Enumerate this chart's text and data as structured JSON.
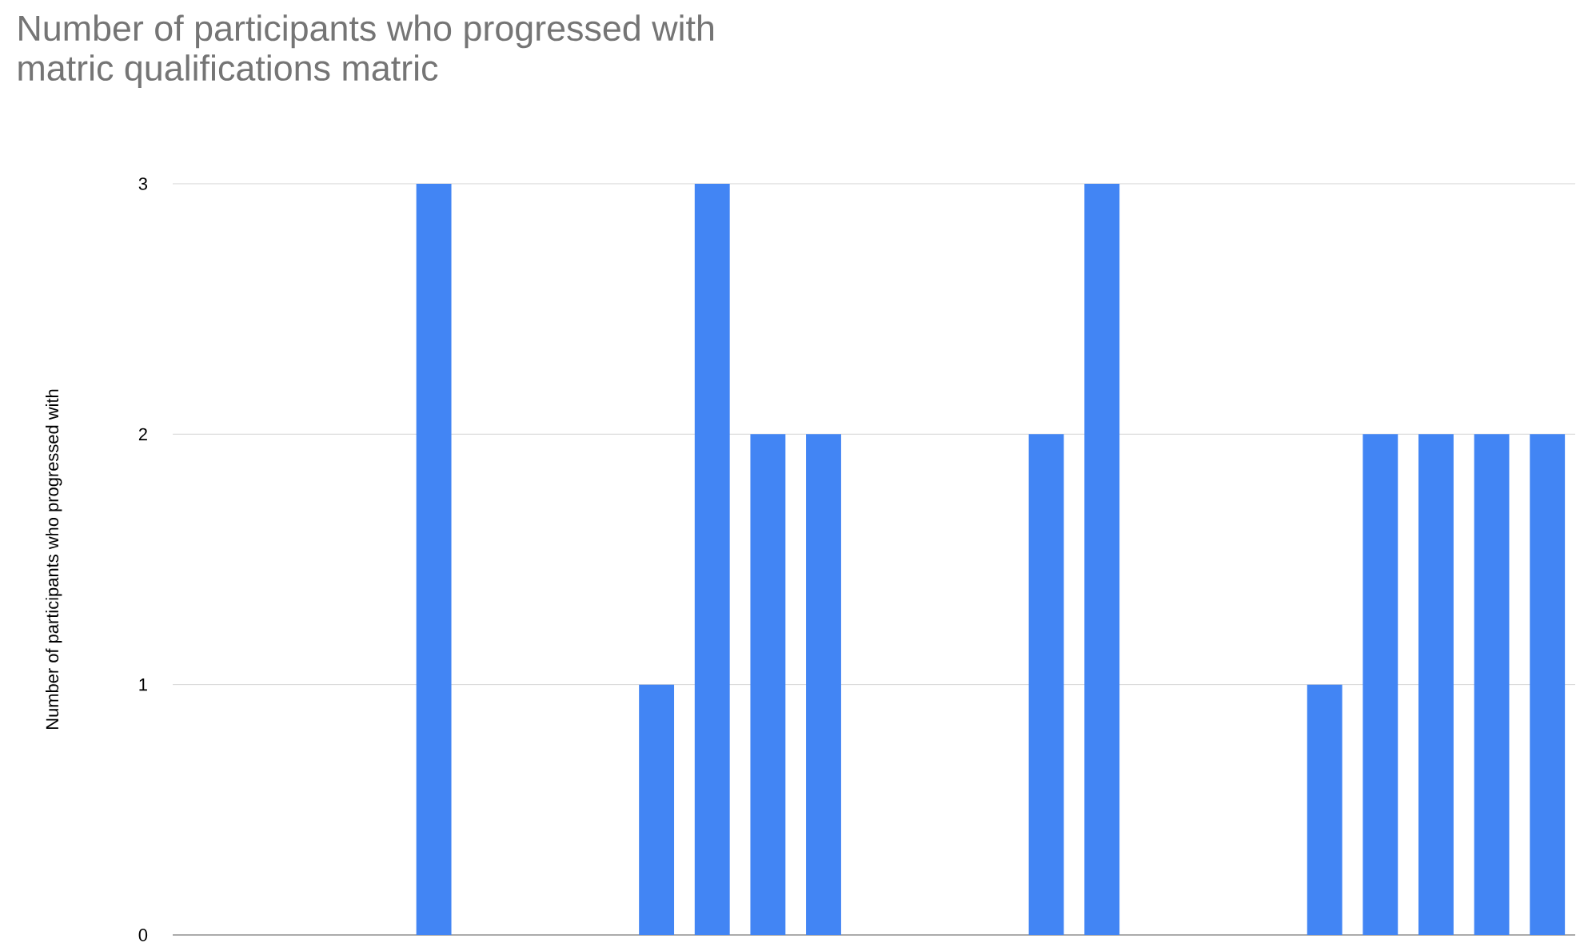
{
  "chart_data": {
    "type": "bar",
    "title": "Number of participants who progressed with\nmatric qualifications matric",
    "ylabel": "Number of participants who progressed with",
    "categories": [
      null,
      null,
      null,
      null,
      null,
      null,
      null,
      null,
      null,
      null,
      null,
      null,
      null,
      null,
      null,
      null,
      null,
      null,
      null,
      null,
      null,
      null,
      null,
      null,
      null
    ],
    "values": [
      0,
      0,
      0,
      0,
      3,
      0,
      0,
      0,
      1,
      3,
      2,
      2,
      0,
      0,
      0,
      2,
      3,
      0,
      0,
      0,
      1,
      2,
      2,
      2,
      2
    ],
    "color": "#4285f4",
    "ylim": [
      0,
      3
    ],
    "yticks": [
      0,
      1,
      2,
      3
    ],
    "grid": "y"
  }
}
